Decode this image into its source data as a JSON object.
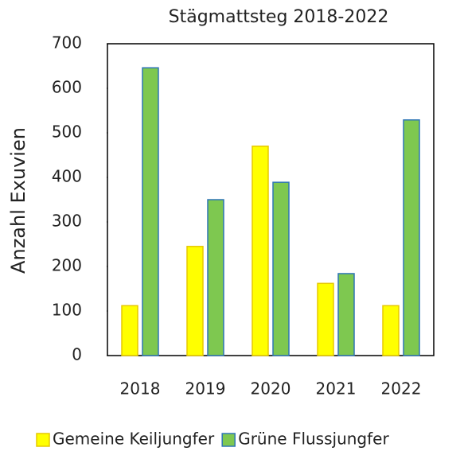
{
  "chart_data": {
    "type": "bar",
    "title": "Stägmattsteg 2018-2022",
    "y_label": "Anzahl Exuvien",
    "categories": [
      "2018",
      "2019",
      "2020",
      "2021",
      "2022"
    ],
    "series": [
      {
        "name": "Gemeine Keiljungfer",
        "color": "#ffff00",
        "edge": "#e6c800",
        "values": [
          112,
          245,
          470,
          162,
          112
        ]
      },
      {
        "name": "Grüne Flussjungfer",
        "color": "#7ec850",
        "edge": "#2e75b6",
        "values": [
          646,
          350,
          389,
          184,
          529
        ]
      }
    ],
    "ylim": [
      0,
      700
    ],
    "yticks": [
      0,
      100,
      200,
      300,
      400,
      500,
      600,
      700
    ],
    "grid": false,
    "legend": "bottom"
  }
}
